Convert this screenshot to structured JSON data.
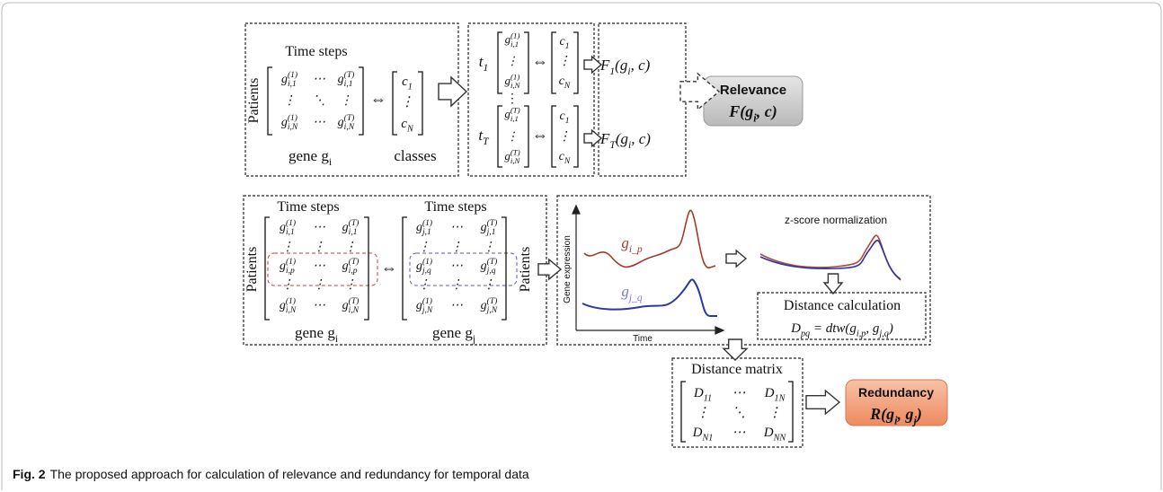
{
  "caption": {
    "label": "Fig. 2",
    "text": "The proposed approach for calculation of relevance and redundancy for temporal data"
  },
  "equiv": "⇔",
  "relevance": {
    "time_steps": "Time steps",
    "patients": "Patients",
    "gene_matrix": [
      [
        [
          "g",
          {
            "sup": "(1)",
            "sub": "i,1"
          }
        ],
        "⋯",
        [
          "g",
          {
            "sup": "(T)",
            "sub": "i,1"
          }
        ]
      ],
      [
        "⋮",
        "⋱",
        "⋮"
      ],
      [
        [
          "g",
          {
            "sup": "(1)",
            "sub": "i,N"
          }
        ],
        "⋯",
        [
          "g",
          {
            "sup": "(T)",
            "sub": "i,N"
          }
        ]
      ]
    ],
    "gene_label": [
      "gene ",
      "g",
      {
        "sub": "i"
      }
    ],
    "class_vector": [
      [
        "c",
        {
          "sub": "1"
        }
      ],
      "⋮",
      [
        "c",
        {
          "sub": "N"
        }
      ]
    ],
    "classes_label": "classes",
    "steps": [
      {
        "time": [
          "t",
          {
            "sub": "1"
          }
        ],
        "vector": [
          [
            "g",
            {
              "sup": "(1)",
              "sub": "i,1"
            }
          ],
          "⋮",
          [
            "g",
            {
              "sup": "(1)",
              "sub": "i,N"
            }
          ]
        ],
        "classes": [
          [
            "c",
            {
              "sub": "1"
            }
          ],
          "⋮",
          [
            "c",
            {
              "sub": "N"
            }
          ]
        ],
        "score": [
          "F",
          {
            "sub": "1"
          },
          "(g",
          {
            "sub": "i"
          },
          ", c)"
        ]
      },
      {
        "time": [
          "t",
          {
            "sub": "T"
          }
        ],
        "vector": [
          [
            "g",
            {
              "sup": "(T)",
              "sub": "i,1"
            }
          ],
          "⋮",
          [
            "g",
            {
              "sup": "(T)",
              "sub": "i,N"
            }
          ]
        ],
        "classes": [
          [
            "c",
            {
              "sub": "1"
            }
          ],
          "⋮",
          [
            "c",
            {
              "sub": "N"
            }
          ]
        ],
        "score": [
          "F",
          {
            "sub": "T"
          },
          "(g",
          {
            "sub": "i"
          },
          ", c)"
        ]
      }
    ],
    "steps_ellipsis": "⋮",
    "result": {
      "title": "Relevance",
      "formula": [
        "F(g",
        {
          "sub": "i"
        },
        ", c)"
      ]
    }
  },
  "redundancy": {
    "time_steps_i": "Time steps",
    "time_steps_j": "Time steps",
    "patients_i": "Patients",
    "patients_j": "Patients",
    "gene_i_matrix": [
      [
        [
          "g",
          {
            "sup": "(1)",
            "sub": "i,1"
          }
        ],
        "⋯",
        [
          "g",
          {
            "sup": "(T)",
            "sub": "i,1"
          }
        ]
      ],
      [
        "⋮",
        "⋮",
        "⋮"
      ],
      [
        [
          "g",
          {
            "sup": "(1)",
            "sub": "i,p"
          }
        ],
        "⋯",
        [
          "g",
          {
            "sup": "(T)",
            "sub": "i,p"
          }
        ]
      ],
      [
        "⋮",
        "⋮",
        "⋮"
      ],
      [
        [
          "g",
          {
            "sup": "(1)",
            "sub": "i,N"
          }
        ],
        "⋯",
        [
          "g",
          {
            "sup": "(T)",
            "sub": "i,N"
          }
        ]
      ]
    ],
    "gene_j_matrix": [
      [
        [
          "g",
          {
            "sup": "(1)",
            "sub": "j,1"
          }
        ],
        "⋯",
        [
          "g",
          {
            "sup": "(T)",
            "sub": "j,1"
          }
        ]
      ],
      [
        "⋮",
        "⋮",
        "⋮"
      ],
      [
        [
          "g",
          {
            "sup": "(1)",
            "sub": "j,q"
          }
        ],
        "⋯",
        [
          "g",
          {
            "sup": "(T)",
            "sub": "j,q"
          }
        ]
      ],
      [
        "⋮",
        "⋮",
        "⋮"
      ],
      [
        [
          "g",
          {
            "sup": "(1)",
            "sub": "j,N"
          }
        ],
        "⋯",
        [
          "g",
          {
            "sup": "(T)",
            "sub": "j,N"
          }
        ]
      ]
    ],
    "gene_i_label": [
      "gene ",
      "g",
      {
        "sub": "i"
      }
    ],
    "gene_j_label": [
      "gene ",
      "g",
      {
        "sub": "j"
      }
    ],
    "plot": {
      "y_label": "Gene expression",
      "x_label": "Time",
      "series_i": [
        "g",
        {
          "sub": "i_p"
        }
      ],
      "series_j": [
        "g",
        {
          "sub": "j_q"
        }
      ]
    },
    "normalization": "z-score normalization",
    "distance": {
      "title": "Distance calculation",
      "formula": [
        "D",
        {
          "sub": "pq"
        },
        " = dtw(g",
        {
          "sub": "i,p"
        },
        ", g",
        {
          "sub": "j,q"
        },
        ")"
      ]
    },
    "matrix": {
      "title": "Distance matrix",
      "cells": [
        [
          [
            "D",
            {
              "sub": "11"
            }
          ],
          "⋯",
          [
            "D",
            {
              "sub": "1N"
            }
          ]
        ],
        [
          "⋮",
          "⋱",
          "⋮"
        ],
        [
          [
            "D",
            {
              "sub": "N1"
            }
          ],
          "⋯",
          [
            "D",
            {
              "sub": "NN"
            }
          ]
        ]
      ]
    },
    "result": {
      "title": "Redundancy",
      "formula": [
        "R(g",
        {
          "sub": "i"
        },
        ", g",
        {
          "sub": "j"
        },
        ")"
      ]
    }
  }
}
